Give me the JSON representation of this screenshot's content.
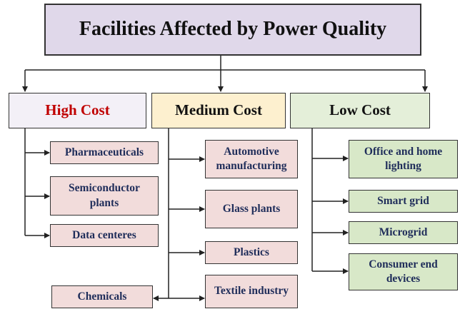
{
  "title": "Facilities Affected by Power Quality",
  "tiers": [
    {
      "label": "High Cost",
      "items": [
        "Pharmaceuticals",
        "Semiconductor plants",
        "Data centeres"
      ]
    },
    {
      "label": "Medium Cost",
      "items": [
        "Automotive manufacturing",
        "Glass plants",
        "Plastics",
        "Textile industry",
        "Chemicals"
      ]
    },
    {
      "label": "Low Cost",
      "items": [
        "Office and home lighting",
        "Smart grid",
        "Microgrid",
        "Consumer end devices"
      ]
    }
  ]
}
